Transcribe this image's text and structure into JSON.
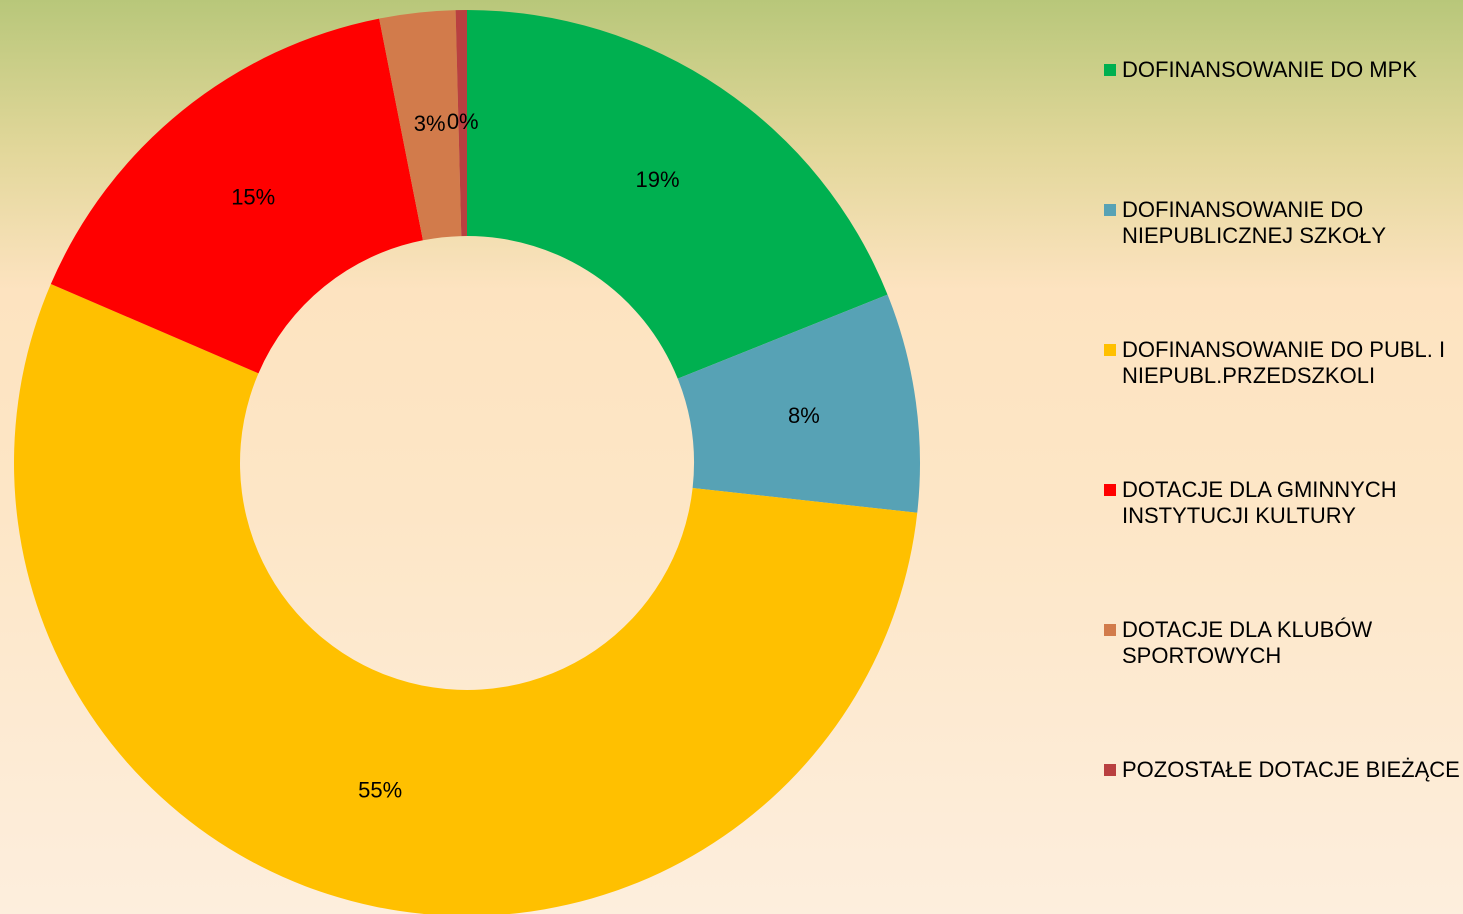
{
  "chart_data": {
    "type": "donut",
    "categories": [
      "DOFINANSOWANIE DO MPK",
      "DOFINANSOWANIE DO NIEPUBLICZNEJ SZKOŁY",
      "DOFINANSOWANIE DO PUBL. I NIEPUBL.PRZEDSZKOLI",
      "DOTACJE DLA GMINNYCH INSTYTUCJI KULTURY",
      "DOTACJE DLA KLUBÓW SPORTOWYCH",
      "POZOSTAŁE DOTACJE BIEŻĄCE"
    ],
    "values": [
      18.9,
      7.8,
      54.6,
      15.4,
      2.7,
      0.4
    ],
    "value_labels": [
      "19%",
      "8%",
      "55%",
      "15%",
      "3%",
      "0%"
    ],
    "colors": [
      "#00b050",
      "#57a2b5",
      "#ffc000",
      "#ff0000",
      "#d27b4b",
      "#b94040"
    ],
    "legend": "right"
  }
}
